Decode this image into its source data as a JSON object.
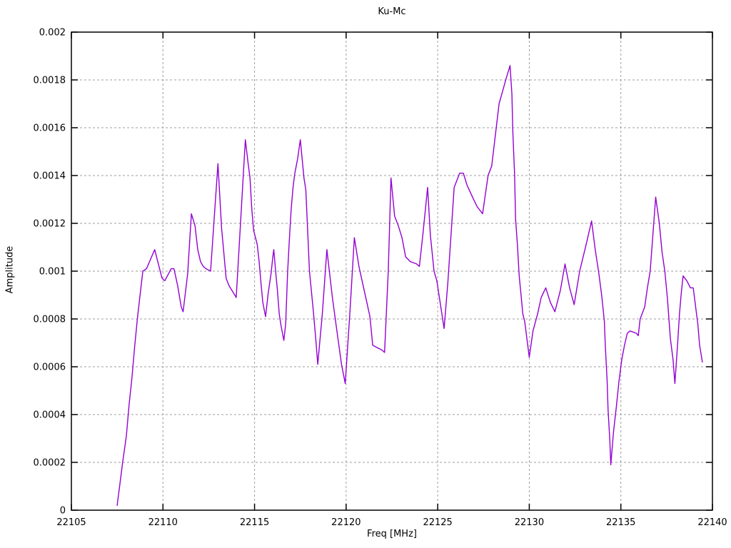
{
  "chart_data": {
    "type": "line",
    "title": "Ku-Mc",
    "xlabel": "Freq [MHz]",
    "ylabel": "Amplitude",
    "xlim": [
      22105,
      22140
    ],
    "ylim": [
      0,
      0.002
    ],
    "grid": true,
    "legend_position": "none",
    "line_color": "#9400d3",
    "grid_color": "#9e9e9e",
    "border_color": "#000000",
    "background_color": "#ffffff",
    "xticks": {
      "values": [
        22105,
        22110,
        22115,
        22120,
        22125,
        22130,
        22135,
        22140
      ],
      "labels": [
        "22105",
        "22110",
        "22115",
        "22120",
        "22125",
        "22130",
        "22135",
        "22140"
      ]
    },
    "yticks": {
      "values": [
        0,
        0.0002,
        0.0004,
        0.0006,
        0.0008,
        0.001,
        0.0012,
        0.0014,
        0.0016,
        0.0018,
        0.002
      ],
      "labels": [
        "0",
        "0.0002",
        "0.0004",
        "0.0006",
        "0.0008",
        "0.001",
        "0.0012",
        "0.0014",
        "0.0016",
        "0.0018",
        "0.002"
      ]
    },
    "series": [
      {
        "name": "Ku-Mc",
        "points": [
          [
            22107.5,
            2e-05
          ],
          [
            22107.65,
            0.00011
          ],
          [
            22107.8,
            0.0002
          ],
          [
            22108.0,
            0.00031
          ],
          [
            22108.15,
            0.00044
          ],
          [
            22108.3,
            0.00055
          ],
          [
            22108.45,
            0.00068
          ],
          [
            22108.6,
            0.0008
          ],
          [
            22108.75,
            0.0009
          ],
          [
            22108.9,
            0.001
          ],
          [
            22109.1,
            0.00101
          ],
          [
            22109.55,
            0.00109
          ],
          [
            22109.95,
            0.00097
          ],
          [
            22110.1,
            0.00096
          ],
          [
            22110.45,
            0.00101
          ],
          [
            22110.6,
            0.00101
          ],
          [
            22110.8,
            0.00094
          ],
          [
            22111.0,
            0.00085
          ],
          [
            22111.1,
            0.00083
          ],
          [
            22111.35,
            0.00099
          ],
          [
            22111.55,
            0.00124
          ],
          [
            22111.75,
            0.00119
          ],
          [
            22111.9,
            0.00109
          ],
          [
            22112.05,
            0.00104
          ],
          [
            22112.2,
            0.00102
          ],
          [
            22112.35,
            0.00101
          ],
          [
            22112.6,
            0.001
          ],
          [
            22113.0,
            0.00145
          ],
          [
            22113.2,
            0.00118
          ],
          [
            22113.45,
            0.00097
          ],
          [
            22113.6,
            0.00094
          ],
          [
            22114.0,
            0.00089
          ],
          [
            22114.5,
            0.00155
          ],
          [
            22114.65,
            0.00145
          ],
          [
            22114.75,
            0.00139
          ],
          [
            22114.85,
            0.00126
          ],
          [
            22114.95,
            0.00117
          ],
          [
            22115.05,
            0.00114
          ],
          [
            22115.15,
            0.00111
          ],
          [
            22115.25,
            0.00104
          ],
          [
            22115.35,
            0.00095
          ],
          [
            22115.45,
            0.00087
          ],
          [
            22115.6,
            0.00081
          ],
          [
            22115.75,
            0.00091
          ],
          [
            22115.9,
            0.00099
          ],
          [
            22116.0,
            0.00106
          ],
          [
            22116.05,
            0.00109
          ],
          [
            22116.15,
            0.001
          ],
          [
            22116.25,
            0.00092
          ],
          [
            22116.35,
            0.00082
          ],
          [
            22116.45,
            0.00077
          ],
          [
            22116.6,
            0.00071
          ],
          [
            22116.7,
            0.00078
          ],
          [
            22116.8,
            0.00099
          ],
          [
            22116.9,
            0.00113
          ],
          [
            22117.0,
            0.00126
          ],
          [
            22117.1,
            0.00135
          ],
          [
            22117.2,
            0.00141
          ],
          [
            22117.35,
            0.00147
          ],
          [
            22117.5,
            0.00155
          ],
          [
            22117.7,
            0.00139
          ],
          [
            22117.8,
            0.00134
          ],
          [
            22118.0,
            0.001
          ],
          [
            22118.2,
            0.00084
          ],
          [
            22118.35,
            0.00071
          ],
          [
            22118.45,
            0.00061
          ],
          [
            22118.7,
            0.00082
          ],
          [
            22118.95,
            0.00109
          ],
          [
            22119.25,
            0.00089
          ],
          [
            22119.55,
            0.00072
          ],
          [
            22119.75,
            0.00061
          ],
          [
            22119.95,
            0.00053
          ],
          [
            22120.2,
            0.00082
          ],
          [
            22120.45,
            0.00114
          ],
          [
            22120.7,
            0.00102
          ],
          [
            22120.9,
            0.00095
          ],
          [
            22121.1,
            0.00088
          ],
          [
            22121.3,
            0.00081
          ],
          [
            22121.45,
            0.00069
          ],
          [
            22121.7,
            0.00068
          ],
          [
            22121.95,
            0.00067
          ],
          [
            22122.1,
            0.00066
          ],
          [
            22122.3,
            0.001
          ],
          [
            22122.45,
            0.00139
          ],
          [
            22122.65,
            0.00123
          ],
          [
            22122.85,
            0.00119
          ],
          [
            22123.05,
            0.00114
          ],
          [
            22123.25,
            0.00106
          ],
          [
            22123.5,
            0.00104
          ],
          [
            22123.85,
            0.00103
          ],
          [
            22124.0,
            0.00102
          ],
          [
            22124.2,
            0.00116
          ],
          [
            22124.45,
            0.00135
          ],
          [
            22124.6,
            0.00115
          ],
          [
            22124.8,
            0.001
          ],
          [
            22124.95,
            0.00096
          ],
          [
            22125.15,
            0.00086
          ],
          [
            22125.35,
            0.00076
          ],
          [
            22125.55,
            0.00095
          ],
          [
            22125.7,
            0.00112
          ],
          [
            22125.9,
            0.00135
          ],
          [
            22126.2,
            0.00141
          ],
          [
            22126.4,
            0.00141
          ],
          [
            22126.6,
            0.00136
          ],
          [
            22126.9,
            0.00131
          ],
          [
            22127.15,
            0.00127
          ],
          [
            22127.45,
            0.00124
          ],
          [
            22127.75,
            0.0014
          ],
          [
            22127.95,
            0.00144
          ],
          [
            22128.35,
            0.0017
          ],
          [
            22128.75,
            0.00181
          ],
          [
            22128.95,
            0.00186
          ],
          [
            22129.05,
            0.00174
          ],
          [
            22129.1,
            0.00159
          ],
          [
            22129.2,
            0.0014
          ],
          [
            22129.25,
            0.00122
          ],
          [
            22129.35,
            0.00111
          ],
          [
            22129.45,
            0.00098
          ],
          [
            22129.55,
            0.0009
          ],
          [
            22129.65,
            0.00082
          ],
          [
            22129.75,
            0.00079
          ],
          [
            22130.0,
            0.00064
          ],
          [
            22130.2,
            0.00075
          ],
          [
            22130.45,
            0.00082
          ],
          [
            22130.65,
            0.00089
          ],
          [
            22130.9,
            0.00093
          ],
          [
            22131.15,
            0.00087
          ],
          [
            22131.4,
            0.00083
          ],
          [
            22131.7,
            0.00092
          ],
          [
            22131.95,
            0.00103
          ],
          [
            22132.2,
            0.00093
          ],
          [
            22132.45,
            0.00086
          ],
          [
            22132.75,
            0.001
          ],
          [
            22133.1,
            0.00111
          ],
          [
            22133.4,
            0.00121
          ],
          [
            22133.6,
            0.00109
          ],
          [
            22133.8,
            0.00099
          ],
          [
            22133.95,
            0.0009
          ],
          [
            22134.1,
            0.00079
          ],
          [
            22134.15,
            0.00069
          ],
          [
            22134.25,
            0.00054
          ],
          [
            22134.3,
            0.00042
          ],
          [
            22134.4,
            0.00029
          ],
          [
            22134.45,
            0.00019
          ],
          [
            22134.6,
            0.00033
          ],
          [
            22134.75,
            0.00043
          ],
          [
            22134.9,
            0.00054
          ],
          [
            22135.05,
            0.00063
          ],
          [
            22135.2,
            0.00069
          ],
          [
            22135.35,
            0.00074
          ],
          [
            22135.5,
            0.00075
          ],
          [
            22135.85,
            0.00074
          ],
          [
            22135.95,
            0.00073
          ],
          [
            22136.05,
            0.0008
          ],
          [
            22136.3,
            0.00085
          ],
          [
            22136.45,
            0.00093
          ],
          [
            22136.6,
            0.001
          ],
          [
            22136.9,
            0.00131
          ],
          [
            22137.1,
            0.0012
          ],
          [
            22137.25,
            0.00108
          ],
          [
            22137.4,
            0.001
          ],
          [
            22137.55,
            0.00088
          ],
          [
            22137.7,
            0.00072
          ],
          [
            22137.85,
            0.00063
          ],
          [
            22137.95,
            0.00053
          ],
          [
            22138.1,
            0.0007
          ],
          [
            22138.2,
            0.00082
          ],
          [
            22138.3,
            0.00091
          ],
          [
            22138.4,
            0.00098
          ],
          [
            22138.6,
            0.00096
          ],
          [
            22138.8,
            0.00093
          ],
          [
            22138.95,
            0.00093
          ],
          [
            22139.1,
            0.00084
          ],
          [
            22139.2,
            0.00078
          ],
          [
            22139.3,
            0.00069
          ],
          [
            22139.45,
            0.00062
          ]
        ]
      }
    ]
  }
}
